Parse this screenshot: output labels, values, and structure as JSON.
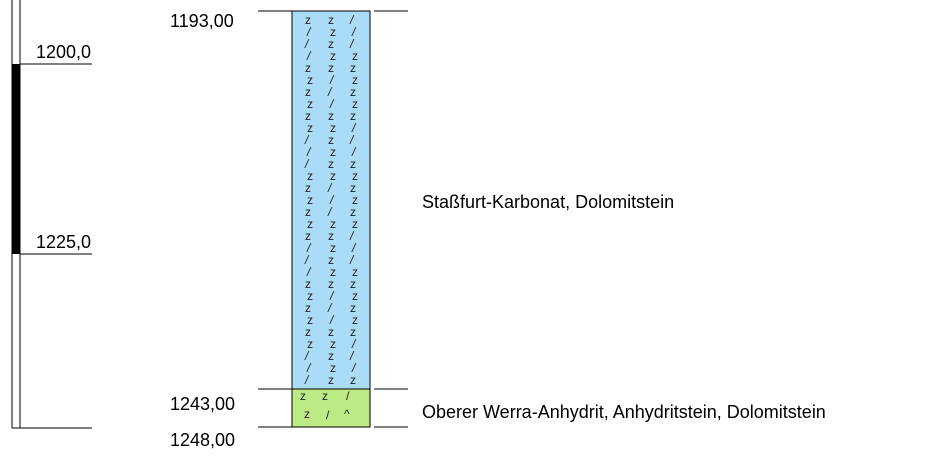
{
  "depth_scale": {
    "ticks": [
      {
        "label": "1200,0"
      },
      {
        "label": "1225,0"
      }
    ]
  },
  "boundaries": [
    {
      "label": "1193,00"
    },
    {
      "label": "1243,00"
    },
    {
      "label": "1248,00"
    }
  ],
  "units": [
    {
      "name": "Staßfurt-Karbonat, Dolomitstein",
      "top": 1193.0,
      "bottom": 1243.0,
      "color": "#aadcf8",
      "pattern": "dolomite"
    },
    {
      "name": "Oberer Werra-Anhydrit, Anhydritstein, Dolomitstein",
      "top": 1243.0,
      "bottom": 1248.0,
      "color": "#bcea84",
      "pattern": "anhydrite-dolomite"
    }
  ],
  "cored_interval": {
    "top": 1200.0,
    "bottom": 1225.0,
    "color": "#000000"
  }
}
